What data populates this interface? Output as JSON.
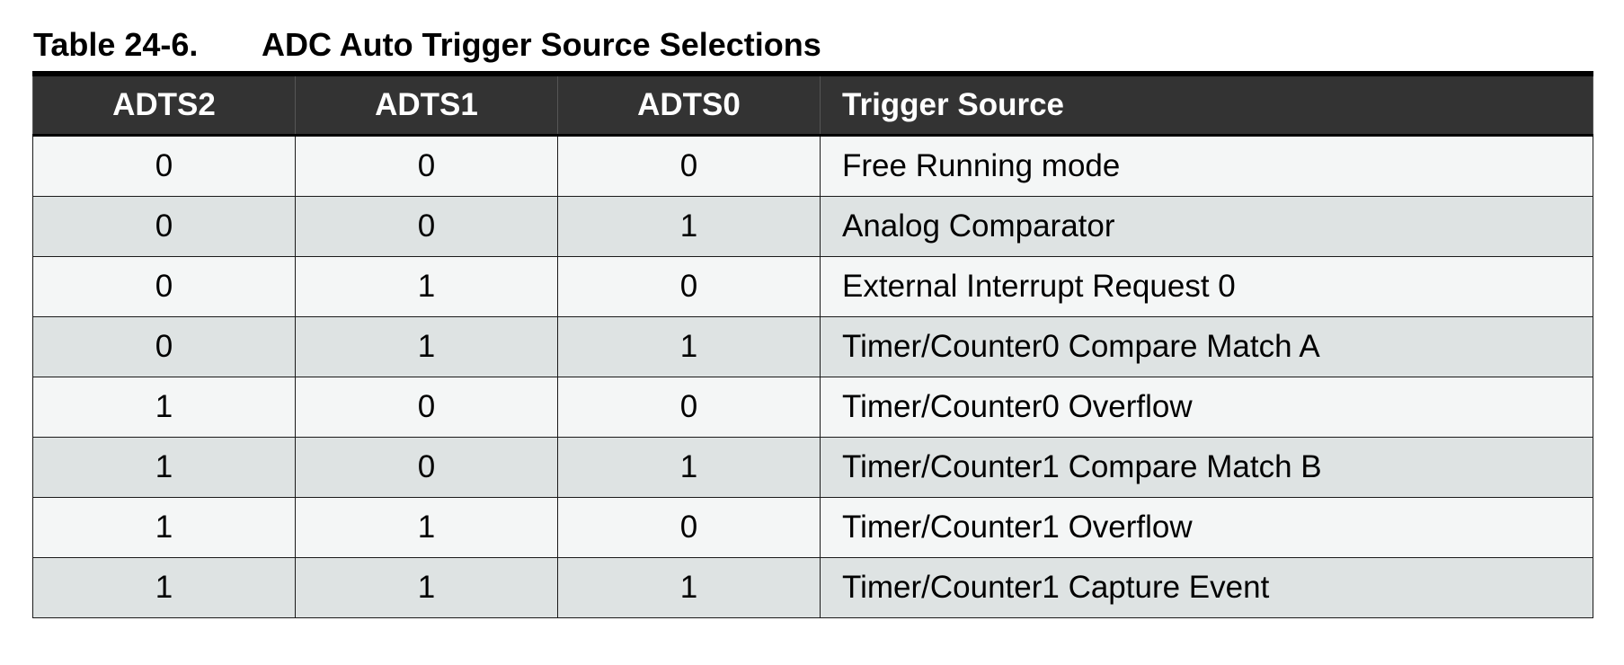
{
  "caption": {
    "number": "Table 24-6.",
    "title": "ADC Auto Trigger Source Selections"
  },
  "table": {
    "headers": [
      "ADTS2",
      "ADTS1",
      "ADTS0",
      "Trigger Source"
    ],
    "rows": [
      [
        "0",
        "0",
        "0",
        "Free Running mode"
      ],
      [
        "0",
        "0",
        "1",
        "Analog Comparator"
      ],
      [
        "0",
        "1",
        "0",
        "External Interrupt Request 0"
      ],
      [
        "0",
        "1",
        "1",
        "Timer/Counter0 Compare Match A"
      ],
      [
        "1",
        "0",
        "0",
        "Timer/Counter0 Overflow"
      ],
      [
        "1",
        "0",
        "1",
        "Timer/Counter1 Compare Match B"
      ],
      [
        "1",
        "1",
        "0",
        "Timer/Counter1 Overflow"
      ],
      [
        "1",
        "1",
        "1",
        "Timer/Counter1 Capture Event"
      ]
    ]
  },
  "colors": {
    "header_bg": "#333333",
    "header_text": "#ffffff",
    "row_light": "#f4f6f6",
    "row_shaded": "#dee3e3"
  }
}
